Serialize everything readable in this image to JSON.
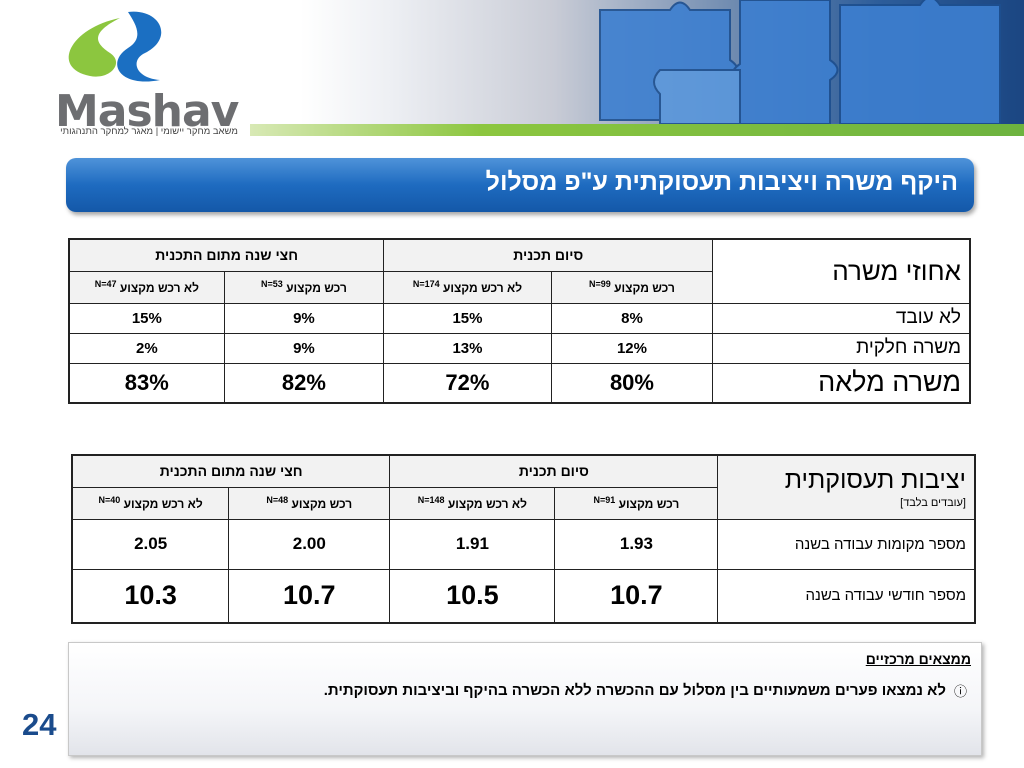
{
  "logo": {
    "name": "Mashav",
    "tagline": "משאב מחקר יישומי | מאגר למחקר התנהגותי"
  },
  "title": "היקף משרה ויציבות תעסוקתית ע\"פ מסלול",
  "table1": {
    "corner": "אחוזי משרה",
    "groups": [
      "סיום תכנית",
      "חצי שנה מתום התכנית"
    ],
    "subheaders": [
      {
        "label": "רכש מקצוע",
        "n": "N=99"
      },
      {
        "label": "לא רכש מקצוע",
        "n": "N=174"
      },
      {
        "label": "רכש מקצוע",
        "n": "N=53"
      },
      {
        "label": "לא רכש מקצוע",
        "n": "N=47"
      }
    ],
    "rows": [
      {
        "label": "לא עובד",
        "values": [
          "8%",
          "15%",
          "9%",
          "15%"
        ]
      },
      {
        "label": "משרה חלקית",
        "values": [
          "12%",
          "13%",
          "9%",
          "2%"
        ]
      },
      {
        "label": "משרה מלאה",
        "values": [
          "80%",
          "72%",
          "82%",
          "83%"
        ]
      }
    ]
  },
  "table2": {
    "corner": "יציבות תעסוקתית",
    "corner_note": "[עובדים בלבד]",
    "groups": [
      "סיום תכנית",
      "חצי שנה מתום התכנית"
    ],
    "subheaders": [
      {
        "label": "רכש מקצוע",
        "n": "N=91"
      },
      {
        "label": "לא רכש מקצוע",
        "n": "N=148"
      },
      {
        "label": "רכש מקצוע",
        "n": "N=48"
      },
      {
        "label": "לא רכש מקצוע",
        "n": "N=40"
      }
    ],
    "rows": [
      {
        "label": "מספר מקומות עבודה בשנה",
        "values": [
          "1.93",
          "1.91",
          "2.00",
          "2.05"
        ]
      },
      {
        "label": "מספר חודשי עבודה בשנה",
        "values": [
          "10.7",
          "10.5",
          "10.7",
          "10.3"
        ]
      }
    ]
  },
  "findings": {
    "title": "ממצאים מרכזיים",
    "items": [
      "לא נמצאו פערים משמעותיים בין מסלול עם ההכשרה ללא הכשרה בהיקף וביציבות תעסוקתית."
    ]
  },
  "page_number": "24"
}
